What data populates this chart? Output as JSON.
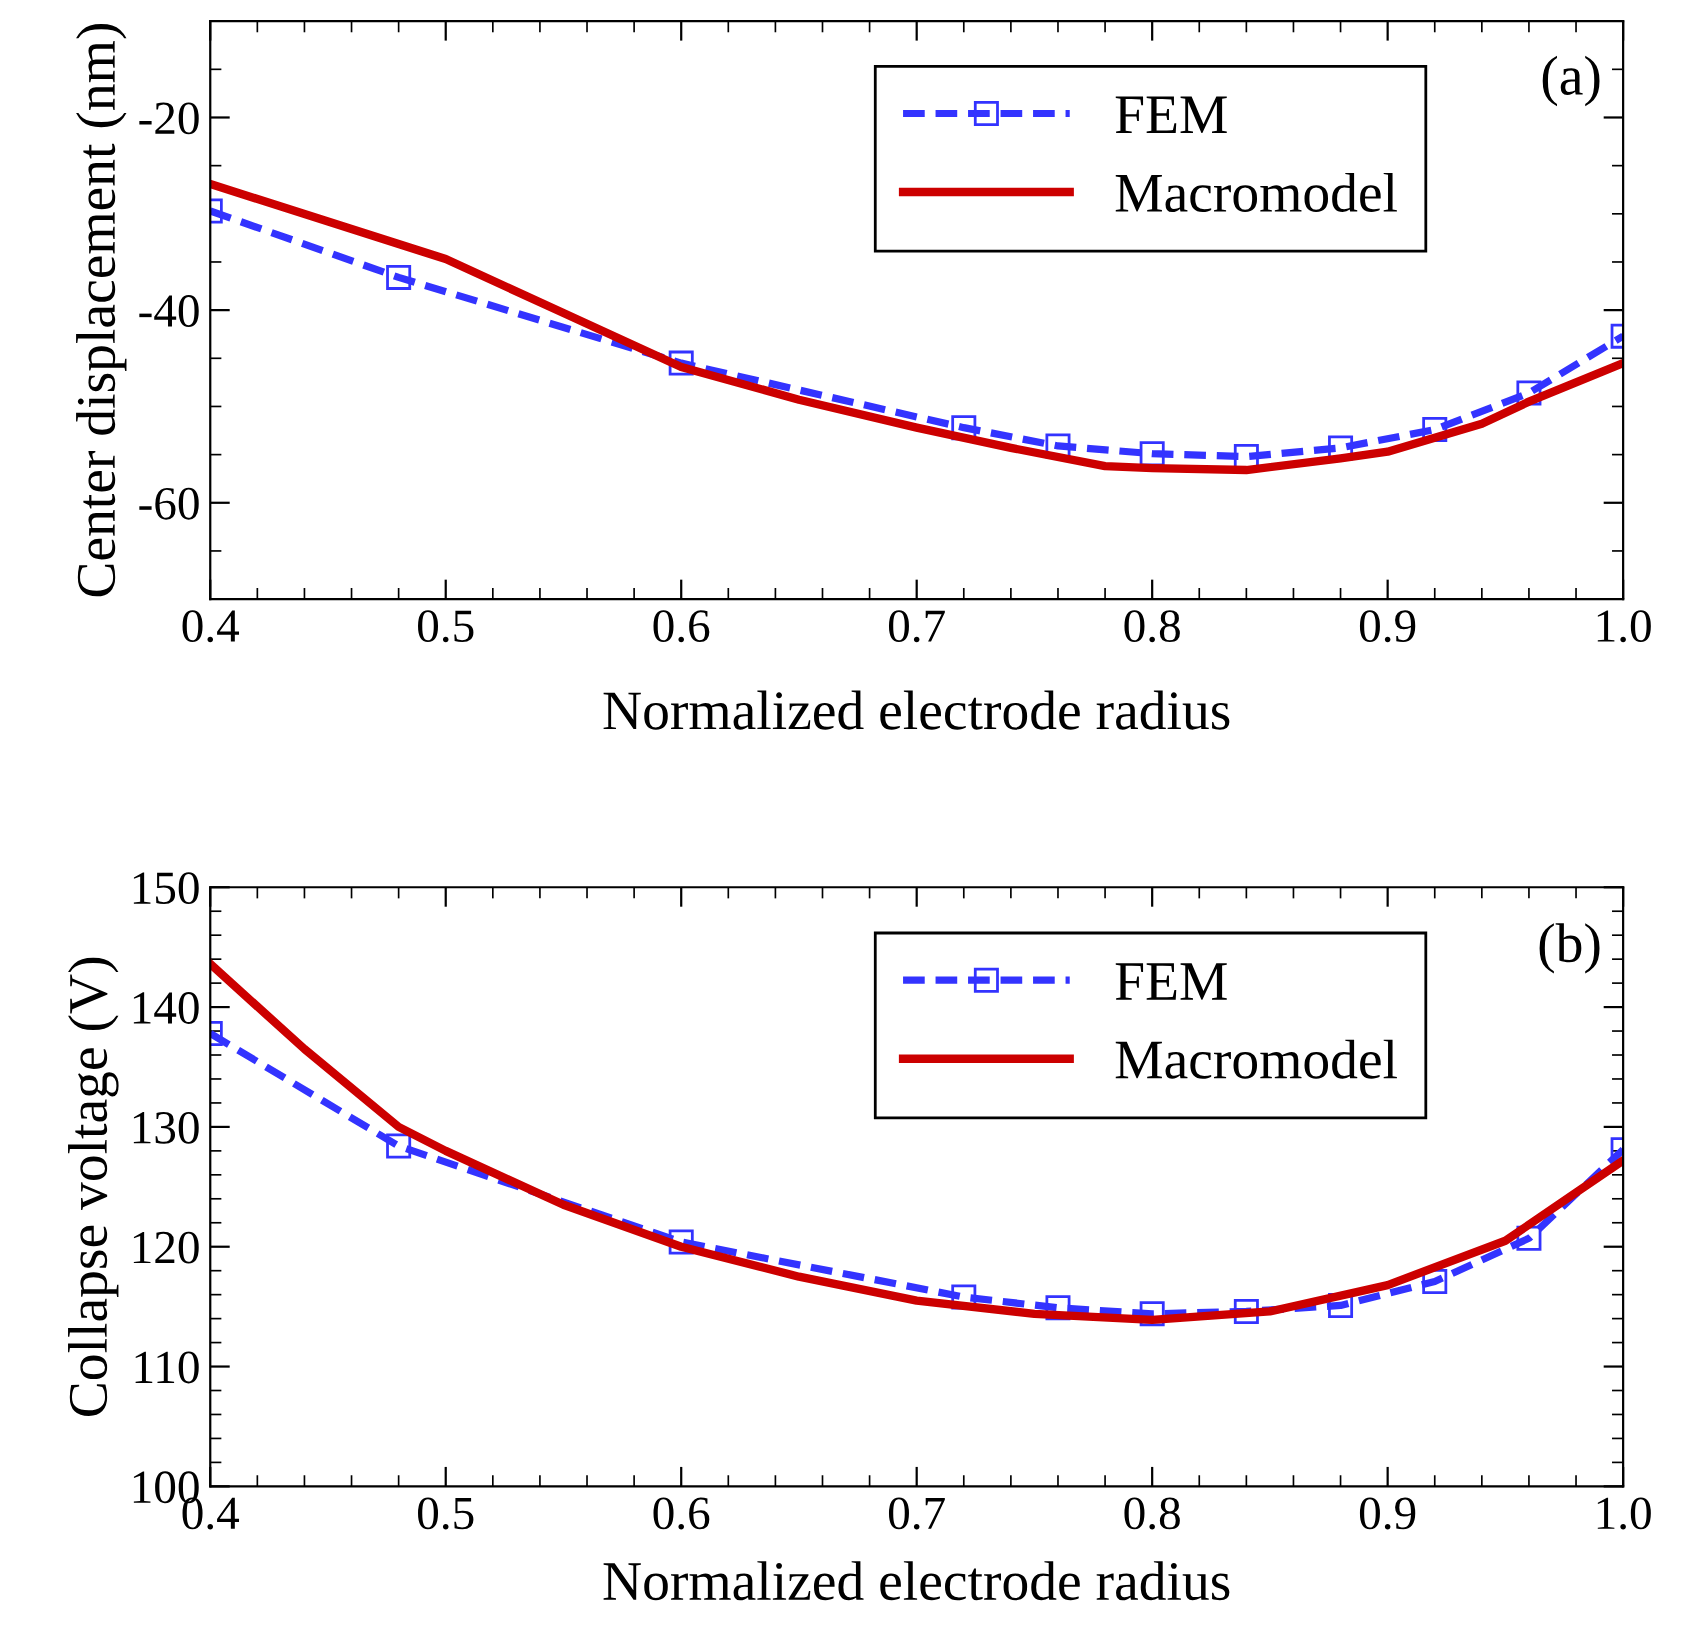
{
  "chart_data": [
    {
      "type": "line",
      "xlabel": "Normalized electrode radius",
      "ylabel": "Center displacement (nm)",
      "annotations": [
        "(a)"
      ],
      "xlim": [
        0.4,
        1.0
      ],
      "xticks": [
        0.4,
        0.5,
        0.6,
        0.7,
        0.8,
        0.9,
        {
          "value": 1,
          "label": "1.0"
        }
      ],
      "ylim": [
        -70,
        -10
      ],
      "yticks": [
        -60,
        -40,
        -20
      ],
      "legend": "top right",
      "grid": false,
      "series": [
        {
          "name": "FEM",
          "color": "#3333ff",
          "marker": "square",
          "line_style": "dashed",
          "x": [
            0.4,
            0.48,
            0.6,
            0.72,
            0.76,
            0.8,
            0.84,
            0.88,
            0.92,
            0.96,
            1.0
          ],
          "values": [
            -29.7,
            -36.6,
            -45.5,
            -52.2,
            -54.1,
            -54.9,
            -55.2,
            -54.3,
            -52.4,
            -48.6,
            -42.7
          ]
        },
        {
          "name": "Macromodel",
          "color": "#cc0000",
          "marker": "none",
          "line_style": "solid",
          "x": [
            0.4,
            0.5,
            0.55,
            0.6,
            0.65,
            0.7,
            0.74,
            0.78,
            0.8,
            0.84,
            0.88,
            0.9,
            0.94,
            0.96,
            0.98,
            1.0
          ],
          "values": [
            -26.9,
            -34.7,
            -40.3,
            -45.9,
            -49.3,
            -52.2,
            -54.3,
            -56.2,
            -56.4,
            -56.6,
            -55.4,
            -54.7,
            -51.8,
            -49.5,
            -47.5,
            -45.5
          ]
        }
      ]
    },
    {
      "type": "line",
      "xlabel": "Normalized electrode radius",
      "ylabel": "Collapse voltage (V)",
      "annotations": [
        "(b)"
      ],
      "xlim": [
        0.4,
        1.0
      ],
      "xticks": [
        0.4,
        0.5,
        0.6,
        0.7,
        0.8,
        0.9,
        {
          "value": 1,
          "label": "1.0"
        }
      ],
      "ylim": [
        100,
        150
      ],
      "yticks": [
        100,
        110,
        120,
        130,
        140,
        150
      ],
      "legend": "top right",
      "grid": false,
      "series": [
        {
          "name": "FEM",
          "color": "#3333ff",
          "marker": "square",
          "line_style": "dashed",
          "x": [
            0.4,
            0.48,
            0.6,
            0.72,
            0.76,
            0.8,
            0.84,
            0.88,
            0.92,
            0.96,
            1.0
          ],
          "values": [
            137.8,
            128.4,
            120.4,
            115.8,
            114.9,
            114.4,
            114.6,
            115.1,
            117.1,
            120.7,
            128.1
          ]
        },
        {
          "name": "Macromodel",
          "color": "#cc0000",
          "marker": "none",
          "line_style": "solid",
          "x": [
            0.4,
            0.44,
            0.48,
            0.5,
            0.55,
            0.6,
            0.65,
            0.7,
            0.75,
            0.8,
            0.85,
            0.9,
            0.95,
            1.0
          ],
          "values": [
            143.6,
            136.5,
            130.0,
            128.0,
            123.5,
            120.0,
            117.5,
            115.5,
            114.4,
            113.9,
            114.6,
            116.8,
            120.5,
            127.2
          ]
        }
      ]
    }
  ]
}
